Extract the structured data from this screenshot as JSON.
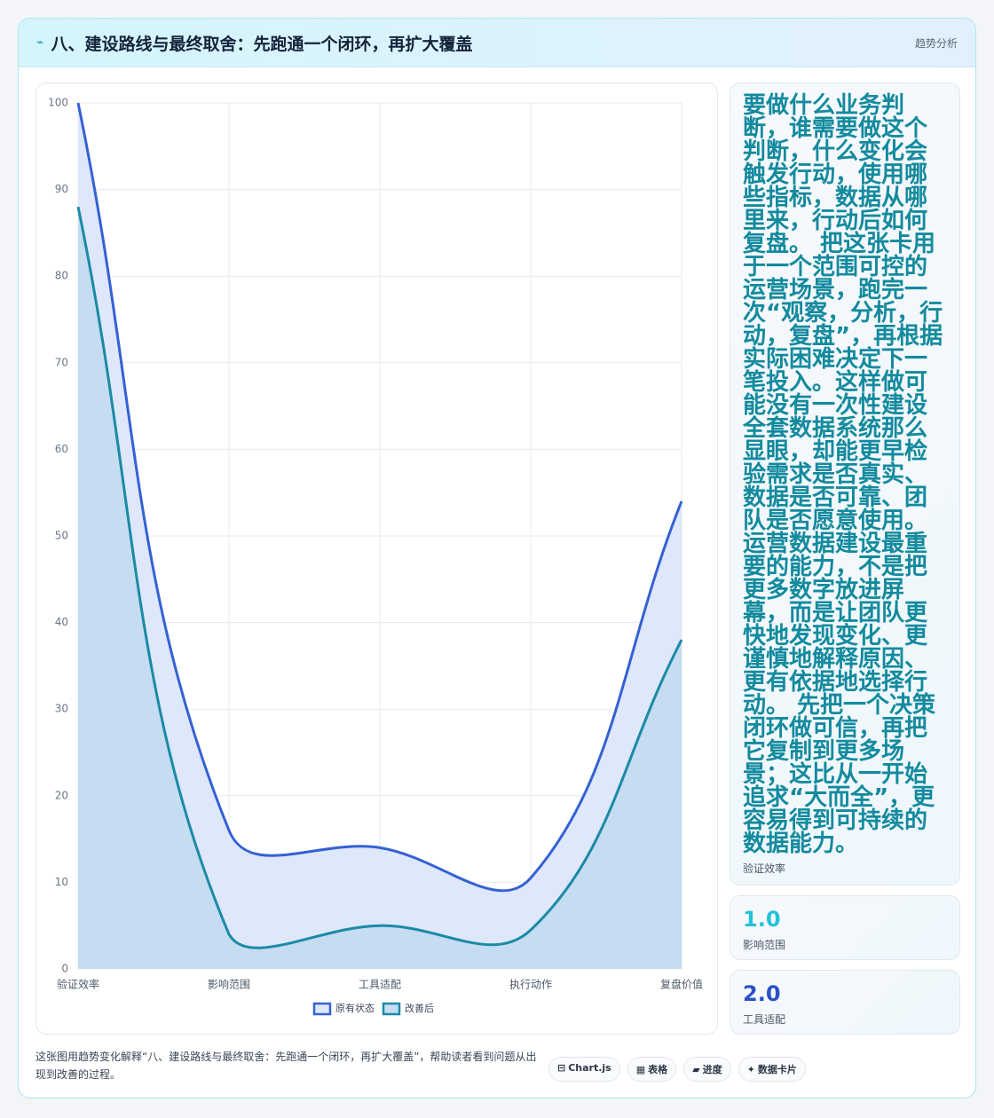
{
  "header": {
    "icon": "⌁",
    "title": "八、建设路线与最终取舍：先跑通一个闭环，再扩大覆盖",
    "tag": "趋势分析"
  },
  "chart_data": {
    "type": "line",
    "categories": [
      "验证效率",
      "影响范围",
      "工具适配",
      "执行动作",
      "复盘价值"
    ],
    "series": [
      {
        "name": "原有状态",
        "color": "#3461d4",
        "fill": "#dfe7fb",
        "values": [
          100,
          16,
          14,
          10.5,
          54
        ]
      },
      {
        "name": "改善后",
        "color": "#1a8aa6",
        "fill": "#c5dcf1",
        "values": [
          88,
          4,
          5,
          4.5,
          38
        ]
      }
    ],
    "ylim": [
      0,
      100
    ],
    "yticks": [
      0,
      10,
      20,
      30,
      40,
      50,
      60,
      70,
      80,
      90,
      100
    ],
    "grid": true,
    "legend": "bottom"
  },
  "cards": [
    {
      "value": "要做什么业务判断，谁需要做这个判断，什么变化会触发行动，使用哪些指标，数据从哪里来，行动后如何复盘。 把这张卡用于一个范围可控的运营场景，跑完一次“观察，分析，行动，复盘”，再根据实际困难决定下一笔投入。这样做可能没有一次性建设全套数据系统那么显眼，却能更早检验需求是否真实、数据是否可靠、团队是否愿意使用。运营数据建设最重要的能力，不是把更多数字放进屏幕，而是让团队更快地发现变化、更谨慎地解释原因、更有依据地选择行动。 先把一个决策闭环做可信，再把它复制到更多场景；这比从一开始追求“大而全”，更容易得到可持续的数据能力。",
      "label": "验证效率"
    },
    {
      "value": "1.0",
      "label": "影响范围"
    },
    {
      "value": "2.0",
      "label": "工具适配"
    }
  ],
  "footer": {
    "caption": "这张图用趋势变化解释“八、建设路线与最终取舍：先跑通一个闭环，再扩大覆盖”，帮助读者看到问题从出现到改善的过程。",
    "buttons": [
      {
        "icon": "⊟",
        "label": "Chart.js"
      },
      {
        "icon": "▦",
        "label": "表格"
      },
      {
        "icon": "▰",
        "label": "进度"
      },
      {
        "icon": "✦",
        "label": "数据卡片"
      }
    ]
  }
}
